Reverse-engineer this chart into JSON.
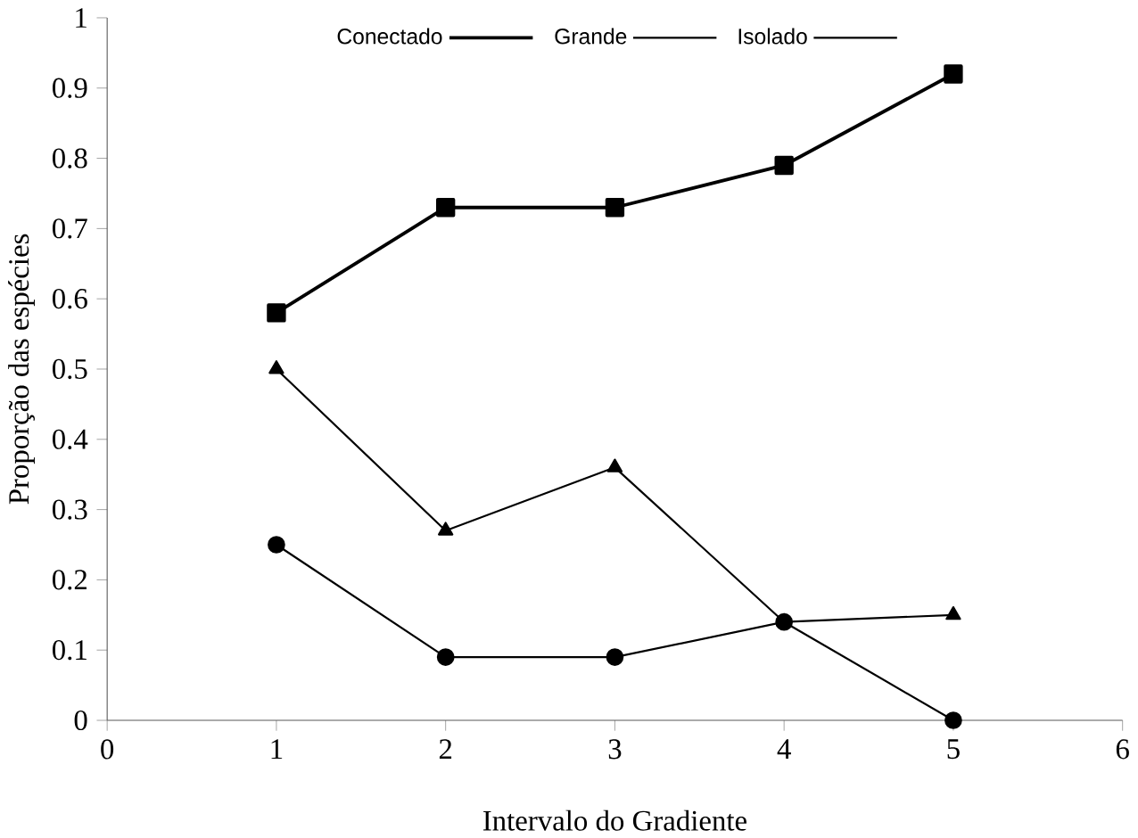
{
  "chart_data": {
    "type": "line",
    "xlabel": "Intervalo do Gradiente",
    "ylabel": "Proporção das espécies",
    "x": [
      1,
      2,
      3,
      4,
      5
    ],
    "series": [
      {
        "name": "Conectado",
        "color": "#000000",
        "marker": "square",
        "values": [
          0.58,
          0.73,
          0.73,
          0.79,
          0.92
        ]
      },
      {
        "name": "Grande",
        "color": "#000000",
        "marker": "triangle",
        "values": [
          0.5,
          0.27,
          0.36,
          0.14,
          0.15
        ]
      },
      {
        "name": "Isolado",
        "color": "#000000",
        "marker": "circle",
        "values": [
          0.25,
          0.09,
          0.09,
          0.14,
          0.0
        ]
      }
    ],
    "xlim": [
      0,
      6
    ],
    "xticks": [
      0,
      1,
      2,
      3,
      4,
      5,
      6
    ],
    "ylim": [
      0,
      1
    ],
    "yticks": [
      0,
      0.1,
      0.2,
      0.3,
      0.4,
      0.5,
      0.6,
      0.7,
      0.8,
      0.9,
      1
    ],
    "grid": false,
    "legend": "top",
    "line_style": "solid"
  }
}
